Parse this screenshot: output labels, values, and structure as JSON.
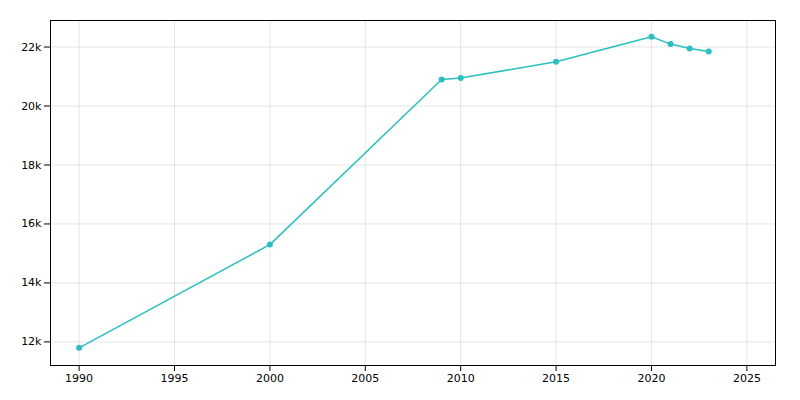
{
  "chart_data": {
    "type": "line",
    "x": [
      1990,
      2000,
      2009,
      2010,
      2015,
      2020,
      2021,
      2022,
      2023
    ],
    "values": [
      11800,
      15300,
      20900,
      20950,
      21500,
      22350,
      22100,
      21950,
      21850
    ],
    "color": "#2BBFBF",
    "marker": "circle",
    "xlim": [
      1988.5,
      2026.5
    ],
    "ylim": [
      11200,
      22900
    ],
    "xticks": [
      1990,
      1995,
      2000,
      2005,
      2010,
      2015,
      2020,
      2025
    ],
    "yticks": [
      {
        "value": 12000,
        "label": "12k"
      },
      {
        "value": 14000,
        "label": "14k"
      },
      {
        "value": 16000,
        "label": "16k"
      },
      {
        "value": 18000,
        "label": "18k"
      },
      {
        "value": 20000,
        "label": "20k"
      },
      {
        "value": 22000,
        "label": "22k"
      }
    ],
    "grid": true
  }
}
